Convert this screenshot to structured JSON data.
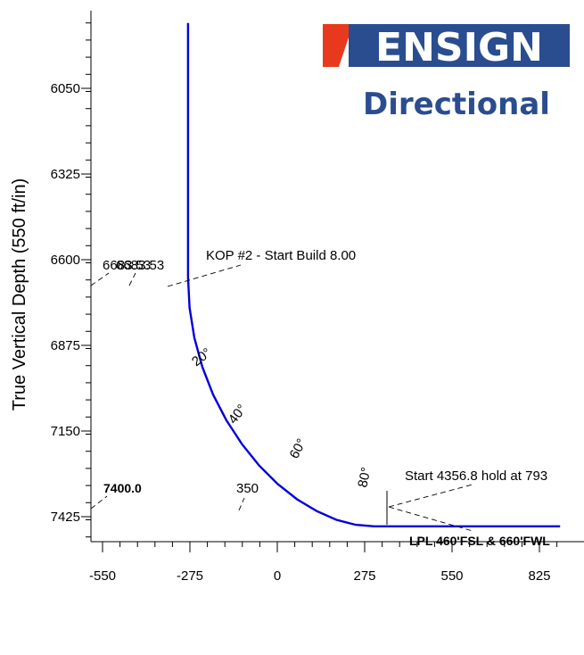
{
  "brand": {
    "name": "ENSIGN",
    "subtitle": "Directional",
    "color_red": "#e8391e",
    "color_blue": "#2a4d8f"
  },
  "chart_data": {
    "type": "line",
    "title": "",
    "xlabel": "",
    "ylabel": "True Vertical Depth (550 ft/in)",
    "x_ticks": [
      -550,
      -275,
      0,
      275,
      550,
      825
    ],
    "y_ticks": [
      6050,
      6325,
      6600,
      6875,
      7150,
      7425
    ],
    "xlim": [
      -630,
      890
    ],
    "ylim": [
      7545,
      5840
    ],
    "y_inverted": true,
    "series": [
      {
        "color": "#0000dd",
        "x": [
          -281,
          -281,
          -281,
          -276,
          -261,
          -236,
          -202,
          -160,
          -111,
          -57,
          1,
          62,
          124,
          186,
          247,
          305,
          350,
          890
        ],
        "y": [
          5840,
          6200,
          6656,
          6754,
          6851,
          6944,
          7033,
          7116,
          7192,
          7261,
          7320,
          7369,
          7407,
          7435,
          7451,
          7456,
          7456,
          7456
        ]
      }
    ],
    "annotations": [
      {
        "text": "KOP #2 - Start Build 8.00",
        "x": -281,
        "y": 6656,
        "style": "normal"
      },
      {
        "text": "6683.53",
        "x": -620,
        "y": 6656,
        "style": "normal"
      },
      {
        "text": "6683.53",
        "x": -470,
        "y": 6656,
        "style": "normal"
      },
      {
        "text": "Start 4356.8 hold at 793",
        "x": 350,
        "y": 7456,
        "style": "normal"
      },
      {
        "text": "LPL 460'FSL & 660'FWL",
        "x": 350,
        "y": 7456,
        "style": "bold"
      },
      {
        "text": "7400.0",
        "x": -630,
        "y": 7456,
        "style": "bold"
      },
      {
        "text": "350",
        "x": -130,
        "y": 7456,
        "style": "normal"
      },
      {
        "text": "20°",
        "x": -236,
        "y": 6944,
        "style": "normal"
      },
      {
        "text": "40°",
        "x": -111,
        "y": 7192,
        "style": "normal"
      },
      {
        "text": "60°",
        "x": 62,
        "y": 7369,
        "style": "normal"
      },
      {
        "text": "80°",
        "x": 247,
        "y": 7451,
        "style": "normal"
      }
    ]
  }
}
